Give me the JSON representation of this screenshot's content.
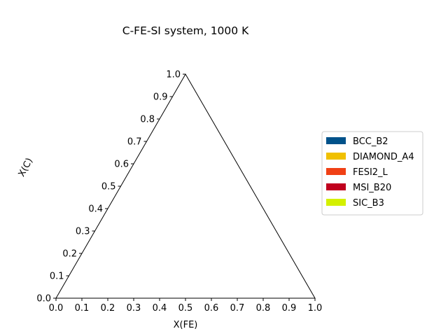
{
  "chart_data": {
    "type": "ternary-phase-diagram",
    "title": "C-FE-SI system, 1000 K",
    "xlabel": "X(FE)",
    "ylabel": "X(C)",
    "xlim": [
      0,
      1
    ],
    "ylim": [
      0,
      1
    ],
    "x_ticks": [
      "0.0",
      "0.1",
      "0.2",
      "0.3",
      "0.4",
      "0.5",
      "0.6",
      "0.7",
      "0.8",
      "0.9",
      "1.0"
    ],
    "y_ticks": [
      "0.0",
      "0.1",
      "0.2",
      "0.3",
      "0.4",
      "0.5",
      "0.6",
      "0.7",
      "0.8",
      "0.9",
      "1.0"
    ],
    "legend_position": "right",
    "legend": [
      {
        "name": "BCC_B2",
        "color": "#00528a"
      },
      {
        "name": "DIAMOND_A4",
        "color": "#f0c000"
      },
      {
        "name": "FESI2_L",
        "color": "#f04015"
      },
      {
        "name": "MSI_B20",
        "color": "#c0001e"
      },
      {
        "name": "SIC_B3",
        "color": "#d4f000"
      }
    ],
    "regions": []
  }
}
